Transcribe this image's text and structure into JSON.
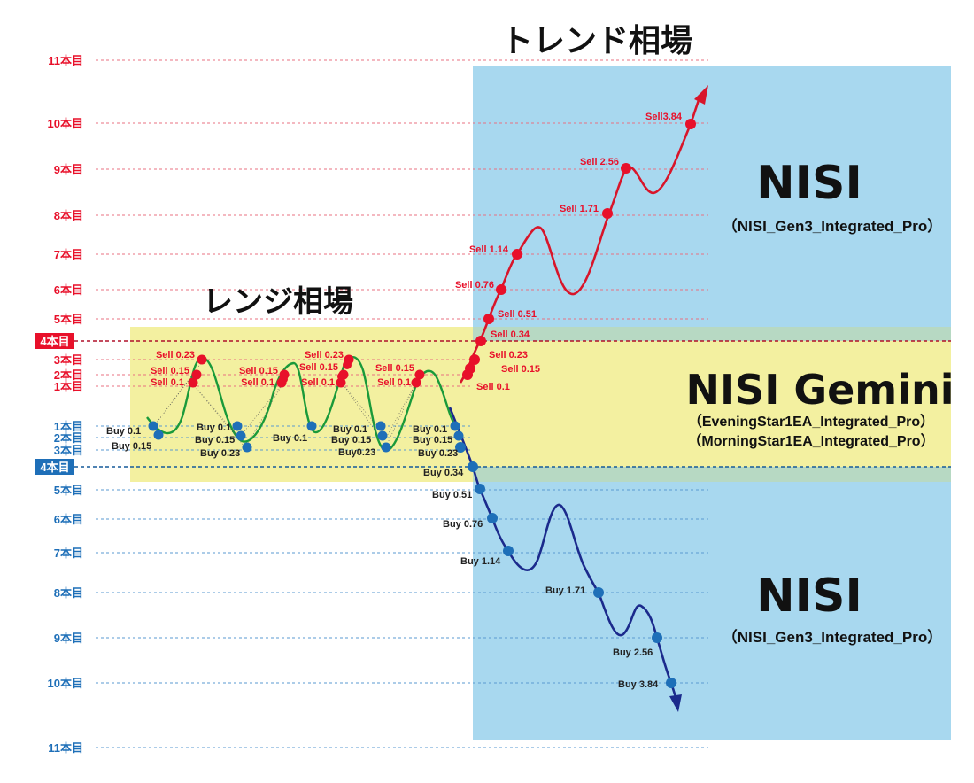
{
  "titles": {
    "trend": "トレンド相場",
    "range": "レンジ相場"
  },
  "panels": {
    "upper": {
      "name": "NISI",
      "sub": "（NISI_Gen3_Integrated_Pro）"
    },
    "lower": {
      "name": "NISI",
      "sub": "（NISI_Gen3_Integrated_Pro）"
    },
    "gemini": {
      "name": "NISI Gemini",
      "sub1": "（EveningStar1EA_Integrated_Pro）",
      "sub2": "（MorningStar1EA_Integrated_Pro）"
    }
  },
  "levels": {
    "sell": [
      "11本目",
      "10本目",
      "9本目",
      "8本目",
      "7本目",
      "6本目",
      "5本目",
      "4本目",
      "3本目",
      "2本目",
      "1本目"
    ],
    "buy": [
      "1本目",
      "2本目",
      "3本目",
      "4本目",
      "5本目",
      "6本目",
      "7本目",
      "8本目",
      "9本目",
      "10本目",
      "11本目"
    ],
    "sell_highlight": "4本目",
    "buy_highlight": "4本目"
  },
  "trend_labels": {
    "sell": [
      "Sell 0.1",
      "Sell 0.15",
      "Sell 0.23",
      "Sell 0.34",
      "Sell 0.51",
      "Sell 0.76",
      "Sell 1.14",
      "Sell 1.71",
      "Sell 2.56",
      "Sell3.84"
    ],
    "buy": [
      "Buy 0.23",
      "Buy 0.34",
      "Buy 0.51",
      "Buy 0.76",
      "Buy 1.14",
      "Buy 1.71",
      "Buy 2.56",
      "Buy 3.84"
    ]
  },
  "range_labels": {
    "sell": [
      "Sell 0.23",
      "Sell 0.15",
      "Sell 0.1",
      "Sell 0.15",
      "Sell 0.1",
      "Sell 0.23",
      "Sell 0.15",
      "Sell 0.1",
      "Sell 0.15",
      "Sell 0.1"
    ],
    "buy": [
      "Buy 0.1",
      "Buy 0.15",
      "Buy 0.1",
      "Buy 0.15",
      "Buy 0.23",
      "Buy 0.1",
      "Buy 0.1",
      "Buy 0.15",
      "Buy0.23",
      "Buy 0.1",
      "Buy 0.15"
    ]
  },
  "colors": {
    "sell": "#e8102a",
    "buy": "#1e6fb8",
    "range_line": "#1a9a3a",
    "up_line": "#d8152a",
    "down_line": "#1b2a8c",
    "trend_bg": "#a8d8ef",
    "range_bg": "#f3f0a0",
    "overlap_bg": "#b7d9c3"
  }
}
